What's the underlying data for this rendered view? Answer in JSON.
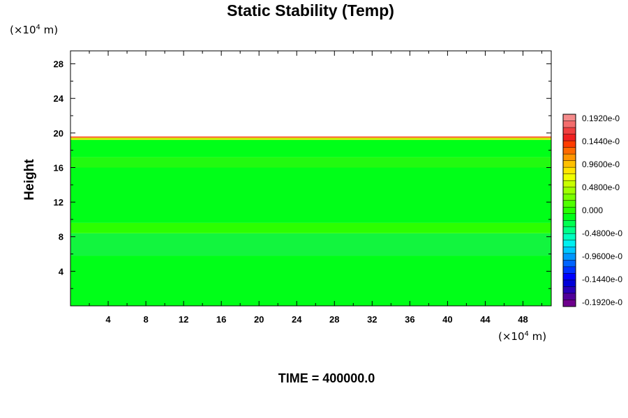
{
  "chart_data": {
    "type": "heatmap",
    "title": "Static Stability (Temp)",
    "xlabel": "",
    "ylabel": "Height",
    "x_unit": {
      "prefix": "(×10",
      "exponent": "4",
      "suffix": " m)"
    },
    "y_unit": {
      "prefix": "(×10",
      "exponent": "4",
      "suffix": " m)"
    },
    "xlim": [
      0,
      51
    ],
    "ylim": [
      0,
      29.5
    ],
    "x_ticks": [
      4,
      8,
      12,
      16,
      20,
      24,
      28,
      32,
      36,
      40,
      44,
      48
    ],
    "y_ticks": [
      4,
      8,
      12,
      16,
      20,
      24,
      28
    ],
    "field_top": 19.6,
    "bands": [
      {
        "y0": 0,
        "y1": 5.8,
        "color": "#00ff18"
      },
      {
        "y0": 5.8,
        "y1": 8.4,
        "color": "#12f53e"
      },
      {
        "y0": 8.4,
        "y1": 9.6,
        "color": "#2cff00"
      },
      {
        "y0": 9.6,
        "y1": 16.0,
        "color": "#00ff18"
      },
      {
        "y0": 16.0,
        "y1": 17.2,
        "color": "#22fa10"
      },
      {
        "y0": 17.2,
        "y1": 19.2,
        "color": "#00ff18"
      },
      {
        "y0": 19.2,
        "y1": 19.45,
        "color": "#c8f000"
      },
      {
        "y0": 19.45,
        "y1": 19.6,
        "color": "#ff5a2a"
      }
    ],
    "colorbar": {
      "colors": [
        "#f58b8b",
        "#f36d6d",
        "#f04040",
        "#f02020",
        "#ff3c00",
        "#ff6a00",
        "#ff9600",
        "#ffc000",
        "#ffe400",
        "#f0ff00",
        "#c8ff00",
        "#a0ff00",
        "#78ff00",
        "#50ff00",
        "#28ff00",
        "#00ff18",
        "#00ff50",
        "#00ff88",
        "#00ffc0",
        "#00f0f0",
        "#00c8ff",
        "#0096ff",
        "#0064ff",
        "#0032ff",
        "#0000ff",
        "#0000d8",
        "#2800b8",
        "#50009a",
        "#6e008c"
      ],
      "labels": [
        "0.1920e-0",
        "0.1440e-0",
        "0.9600e-0",
        "0.4800e-0",
        "0.000",
        "-0.4800e-0",
        "-0.9600e-0",
        "-0.1440e-0",
        "-0.1920e-0"
      ]
    },
    "footer": "TIME = 400000.0"
  }
}
